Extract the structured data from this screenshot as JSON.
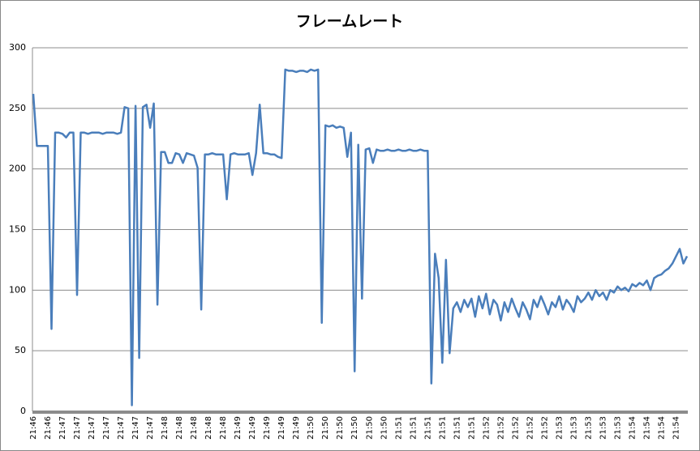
{
  "chart_data": {
    "type": "line",
    "title": "フレームレート",
    "categories": [
      "21:46",
      null,
      null,
      null,
      "21:46",
      null,
      null,
      null,
      "21:47",
      null,
      null,
      null,
      "21:47",
      null,
      null,
      null,
      "21:47",
      null,
      null,
      null,
      "21:47",
      null,
      null,
      null,
      "21:47",
      null,
      null,
      null,
      "21:47",
      null,
      null,
      null,
      "21:47",
      null,
      null,
      null,
      "21:48",
      null,
      null,
      null,
      "21:48",
      null,
      null,
      null,
      "21:48",
      null,
      null,
      null,
      "21:48",
      null,
      null,
      null,
      "21:48",
      null,
      null,
      null,
      "21:49",
      null,
      null,
      null,
      "21:49",
      null,
      null,
      null,
      "21:49",
      null,
      null,
      null,
      "21:49",
      null,
      null,
      null,
      "21:49",
      null,
      null,
      null,
      "21:50",
      null,
      null,
      null,
      "21:50",
      null,
      null,
      null,
      "21:50",
      null,
      null,
      null,
      "21:50",
      null,
      null,
      null,
      "21:50",
      null,
      null,
      null,
      "21:50",
      null,
      null,
      null,
      "21:51",
      null,
      null,
      null,
      "21:51",
      null,
      null,
      null,
      "21:51",
      null,
      null,
      null,
      "21:51",
      null,
      null,
      null,
      "21:51",
      null,
      null,
      null,
      "21:51",
      null,
      null,
      null,
      "21:52",
      null,
      null,
      null,
      "21:52",
      null,
      null,
      null,
      "21:52",
      null,
      null,
      null,
      "21:52",
      null,
      null,
      null,
      "21:52",
      null,
      null,
      null,
      "21:53",
      null,
      null,
      null,
      "21:53",
      null,
      null,
      null,
      "21:53",
      null,
      null,
      null,
      "21:53",
      null,
      null,
      null,
      "21:53",
      null,
      null,
      null,
      "21:54",
      null,
      null,
      null,
      "21:54",
      null,
      null,
      null,
      "21:54",
      null,
      null,
      null,
      "21:54",
      null,
      null,
      null
    ],
    "series": [
      {
        "name": "フレームレート",
        "color": "#4a7ebb",
        "values": [
          262,
          219,
          219,
          219,
          219,
          68,
          230,
          230,
          229,
          226,
          230,
          230,
          96,
          230,
          230,
          229,
          230,
          230,
          230,
          229,
          230,
          230,
          230,
          229,
          230,
          251,
          250,
          5,
          252,
          44,
          251,
          253,
          234,
          254,
          88,
          214,
          214,
          205,
          205,
          213,
          212,
          205,
          213,
          212,
          211,
          201,
          84,
          212,
          212,
          213,
          212,
          212,
          212,
          175,
          212,
          213,
          212,
          212,
          212,
          213,
          195,
          213,
          253,
          213,
          213,
          212,
          212,
          210,
          209,
          282,
          281,
          281,
          280,
          281,
          281,
          280,
          282,
          281,
          282,
          73,
          236,
          235,
          236,
          234,
          235,
          234,
          210,
          230,
          33,
          220,
          93,
          216,
          217,
          205,
          216,
          215,
          215,
          216,
          215,
          215,
          216,
          215,
          215,
          216,
          215,
          215,
          216,
          215,
          215,
          23,
          130,
          110,
          40,
          125,
          48,
          85,
          90,
          82,
          92,
          86,
          93,
          78,
          95,
          85,
          97,
          80,
          92,
          88,
          75,
          90,
          82,
          93,
          85,
          78,
          90,
          84,
          76,
          92,
          86,
          95,
          88,
          80,
          90,
          86,
          95,
          84,
          92,
          88,
          82,
          95,
          90,
          93,
          98,
          92,
          100,
          95,
          98,
          92,
          100,
          98,
          103,
          100,
          102,
          99,
          105,
          103,
          106,
          104,
          108,
          100,
          110,
          112,
          113,
          116,
          118,
          122,
          128,
          134,
          122,
          128
        ]
      }
    ],
    "ylim": [
      0,
      300
    ],
    "yticks": [
      0,
      50,
      100,
      150,
      200,
      250,
      300
    ],
    "grid": true
  }
}
